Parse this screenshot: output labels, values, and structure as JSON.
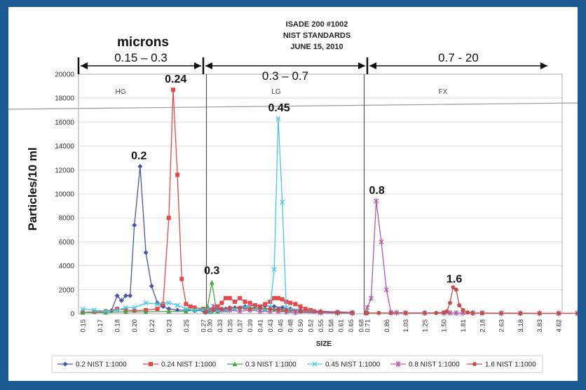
{
  "chart_data": {
    "type": "line",
    "title_lines": [
      "ISADE 200 #1002",
      "NIST STANDARDS",
      "JUNE 15, 2010"
    ],
    "xlabel": "SIZE",
    "ylabel": "Particles/10 ml",
    "ylim": [
      0,
      20000
    ],
    "yticks": [
      "0",
      "2000",
      "4000",
      "6000",
      "8000",
      "10000",
      "12000",
      "14000",
      "16000",
      "18000",
      "20000"
    ],
    "grid": "horizontal",
    "legend_position": "bottom",
    "units_label": "microns",
    "panels": [
      {
        "name": "HG",
        "range_label": "0.15 – 0.3",
        "x_start": 0.15,
        "x_end": 0.29,
        "ticks": [
          "0.15",
          "0.17",
          "0.18",
          "0.20",
          "0.22",
          "0.23",
          "0.25",
          "0.27"
        ],
        "tick_values": [
          0.15,
          0.165,
          0.18,
          0.2,
          0.215,
          0.23,
          0.25,
          0.27
        ]
      },
      {
        "name": "LG",
        "range_label": "0.3 – 0.7",
        "x_start": 0.29,
        "x_end": 0.7,
        "ticks": [
          "0.30",
          "0.33",
          "0.35",
          "0.37",
          "0.39",
          "0.41",
          "0.43",
          "0.45",
          "0.48",
          "0.50",
          "0.52",
          "0.55",
          "0.58",
          "0.61",
          "0.65",
          "0.68"
        ],
        "tick_values": [
          0.3,
          0.325,
          0.35,
          0.37,
          0.39,
          0.41,
          0.43,
          0.455,
          0.48,
          0.5,
          0.52,
          0.55,
          0.58,
          0.61,
          0.645,
          0.68
        ]
      },
      {
        "name": "FX",
        "range_label": "0.7 - 20",
        "x_start": 0.7,
        "x_end": 5.5,
        "ticks": [
          "0.71",
          "0.86",
          "1.03",
          "1.25",
          "1.50",
          "1.81",
          "2.18",
          "2.63",
          "3.18",
          "3.83",
          "4.62"
        ],
        "tick_values": [
          0.71,
          0.86,
          1.03,
          1.25,
          1.5,
          1.81,
          2.18,
          2.63,
          3.18,
          3.83,
          4.62
        ]
      }
    ],
    "series": [
      {
        "name": "0.2 NIST 1:1000",
        "color": "#4a55a4",
        "marker": "diamond",
        "x": [
          0.15,
          0.16,
          0.17,
          0.175,
          0.18,
          0.185,
          0.19,
          0.195,
          0.2,
          0.205,
          0.21,
          0.215,
          0.22,
          0.225,
          0.23,
          0.24,
          0.25,
          0.26,
          0.27,
          0.28,
          0.29,
          0.3,
          0.32,
          0.34,
          0.36,
          0.38,
          0.4,
          0.42,
          0.44,
          0.46,
          0.48,
          0.5,
          0.55,
          0.6,
          0.65,
          0.7
        ],
        "y": [
          100,
          150,
          200,
          250,
          1500,
          1100,
          1500,
          1500,
          7400,
          12300,
          5100,
          2300,
          900,
          600,
          400,
          300,
          300,
          250,
          250,
          200,
          150,
          200,
          300,
          400,
          500,
          600,
          700,
          650,
          600,
          500,
          400,
          300,
          200,
          150,
          100,
          100
        ]
      },
      {
        "name": "0.24 NIST 1:1000",
        "color": "#e44848",
        "marker": "square",
        "x": [
          0.15,
          0.16,
          0.17,
          0.18,
          0.19,
          0.2,
          0.21,
          0.22,
          0.225,
          0.23,
          0.235,
          0.24,
          0.245,
          0.25,
          0.255,
          0.26,
          0.27,
          0.28,
          0.29,
          0.3,
          0.31,
          0.32,
          0.33,
          0.34,
          0.35,
          0.36,
          0.37,
          0.38,
          0.39,
          0.4,
          0.41,
          0.42,
          0.43,
          0.44,
          0.45,
          0.46,
          0.47,
          0.48,
          0.49,
          0.5,
          0.51,
          0.52,
          0.53,
          0.55,
          0.6,
          0.65,
          0.7
        ],
        "y": [
          100,
          150,
          200,
          400,
          300,
          250,
          300,
          400,
          800,
          8000,
          18700,
          11600,
          2900,
          800,
          600,
          500,
          400,
          300,
          200,
          200,
          400,
          600,
          900,
          1300,
          1300,
          1000,
          1300,
          1000,
          900,
          700,
          600,
          800,
          1000,
          1300,
          1300,
          1200,
          1000,
          900,
          800,
          600,
          400,
          300,
          200,
          150,
          100,
          80,
          60
        ]
      },
      {
        "name": "0.3 NIST 1:1000",
        "color": "#49a349",
        "marker": "triangle",
        "x": [
          0.15,
          0.17,
          0.19,
          0.21,
          0.23,
          0.25,
          0.26,
          0.27,
          0.275,
          0.28,
          0.285,
          0.29,
          0.3,
          0.32,
          0.34,
          0.36,
          0.38,
          0.4,
          0.42,
          0.44,
          0.46,
          0.48,
          0.5,
          0.55,
          0.6,
          0.65,
          0.7
        ],
        "y": [
          100,
          100,
          150,
          150,
          200,
          200,
          300,
          400,
          600,
          2600,
          400,
          200,
          150,
          200,
          300,
          400,
          500,
          500,
          400,
          350,
          300,
          250,
          200,
          150,
          100,
          80,
          60
        ]
      },
      {
        "name": "0.45 NIST 1:1000",
        "color": "#45c7e8",
        "marker": "x",
        "x": [
          0.15,
          0.16,
          0.17,
          0.18,
          0.19,
          0.2,
          0.21,
          0.22,
          0.23,
          0.24,
          0.25,
          0.26,
          0.27,
          0.28,
          0.29,
          0.3,
          0.32,
          0.34,
          0.36,
          0.38,
          0.4,
          0.42,
          0.43,
          0.44,
          0.45,
          0.46,
          0.47,
          0.48,
          0.5,
          0.52,
          0.55,
          0.6,
          0.65,
          0.7
        ],
        "y": [
          400,
          300,
          200,
          300,
          500,
          500,
          900,
          800,
          900,
          700,
          400,
          300,
          300,
          200,
          150,
          200,
          250,
          300,
          400,
          500,
          400,
          300,
          500,
          3700,
          16300,
          9300,
          500,
          300,
          200,
          150,
          100,
          80,
          60,
          50
        ]
      },
      {
        "name": "0.8 NIST 1:1000",
        "color": "#b05aa6",
        "marker": "star",
        "x": [
          0.29,
          0.31,
          0.33,
          0.35,
          0.37,
          0.39,
          0.41,
          0.43,
          0.45,
          0.47,
          0.49,
          0.55,
          0.6,
          0.65,
          0.7,
          0.71,
          0.74,
          0.78,
          0.82,
          0.86,
          0.9,
          0.95,
          1.03,
          1.25,
          1.5,
          1.6,
          1.7,
          1.81,
          2.0,
          2.18,
          2.63,
          3.18,
          3.83,
          4.62,
          5.4
        ],
        "y": [
          200,
          600,
          300,
          300,
          200,
          300,
          200,
          200,
          200,
          150,
          100,
          80,
          60,
          50,
          50,
          500,
          1300,
          9400,
          6000,
          2000,
          100,
          80,
          60,
          60,
          60,
          60,
          60,
          60,
          60,
          50,
          40,
          40,
          30,
          30,
          30
        ]
      },
      {
        "name": "1.6 NIST 1:1000",
        "color": "#c0504d",
        "marker": "circle",
        "x": [
          0.29,
          0.31,
          0.33,
          0.35,
          0.37,
          0.39,
          0.41,
          0.43,
          0.45,
          0.47,
          0.5,
          0.55,
          0.6,
          0.65,
          0.7,
          0.71,
          0.8,
          0.9,
          1.03,
          1.25,
          1.4,
          1.5,
          1.55,
          1.6,
          1.65,
          1.7,
          1.75,
          1.81,
          1.9,
          2.0,
          2.18,
          2.63,
          3.18,
          3.83,
          4.62,
          5.4
        ],
        "y": [
          100,
          300,
          400,
          500,
          500,
          400,
          500,
          400,
          350,
          300,
          200,
          150,
          100,
          80,
          60,
          60,
          60,
          60,
          60,
          60,
          60,
          100,
          200,
          900,
          2200,
          2000,
          700,
          300,
          100,
          60,
          50,
          40,
          30,
          30,
          30,
          30
        ]
      }
    ],
    "annotations": [
      {
        "text": "0.24",
        "x": 0.238,
        "y": 19300
      },
      {
        "text": "0.2",
        "x": 0.204,
        "y": 12900
      },
      {
        "text": "0.3",
        "x": 0.28,
        "y": 3300
      },
      {
        "text": "0.45",
        "x": 0.452,
        "y": 16900
      },
      {
        "text": "0.8",
        "x": 0.785,
        "y": 10000
      },
      {
        "text": "1.6",
        "x": 1.67,
        "y": 2600
      }
    ]
  }
}
